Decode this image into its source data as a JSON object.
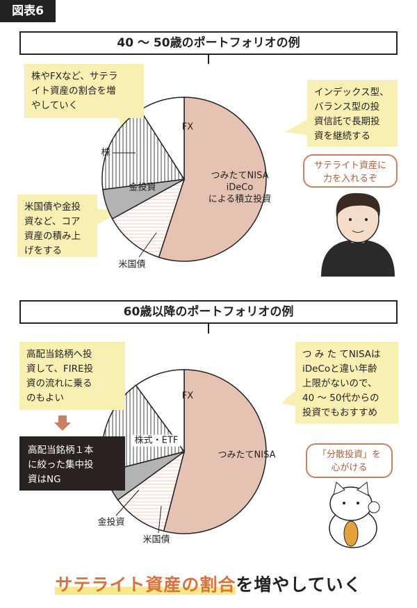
{
  "badge": "図表6",
  "chart_data": [
    {
      "type": "pie",
      "title": "40 ～ 50歳のポートフォリオの例",
      "categories": [
        "つみたてNISA\niDeCo\nによる積立投資",
        "米国債",
        "金投資",
        "株",
        "FX"
      ],
      "values": [
        55,
        12,
        6,
        18,
        9
      ],
      "colors": [
        "#e5c2b1",
        "#f0c9b8",
        "#b3b3b3",
        "#444444",
        "#ffffff"
      ],
      "patterns": [
        "none",
        "horizontal",
        "none",
        "vertical",
        "none"
      ]
    },
    {
      "type": "pie",
      "title": "60歳以降のポートフォリオの例",
      "categories": [
        "つみたてNISA",
        "米国債",
        "金投資",
        "株式・ETF",
        "FX"
      ],
      "values": [
        54,
        11,
        6,
        19,
        10
      ],
      "colors": [
        "#e5c2b1",
        "#f0c9b8",
        "#b3b3b3",
        "#444444",
        "#ffffff"
      ],
      "patterns": [
        "none",
        "horizontal",
        "none",
        "vertical",
        "none"
      ]
    }
  ],
  "notes": [
    "株やFXなど、サテラ\nイト資産の割合を増\nやしていく",
    "インデックス型、\nバランス型の投\n資信託で長期投\n資を継続する",
    "米国債や金投\n資など、コア\n資産の積み上\nげをする",
    "高配当銘柄へ投\n資して、FIRE投\n資の流れに乗る\nのもよい",
    "つ み た てNISAは\niDeCoと違い年齢\n上限がないので、\n40 ～ 50代からの\n投資でもおすすめ"
  ],
  "warning": "高配当銘柄１本\nに絞った集中投\n資はNG",
  "bubbles": [
    "サテライト資産に\n力を入れるぞ",
    "「分散投資」を\n心がける"
  ],
  "footer": {
    "highlight": "サテライト資産の割合",
    "rest": "を増やしていく"
  }
}
